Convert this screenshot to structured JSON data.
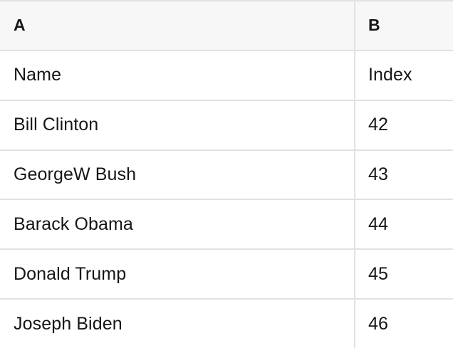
{
  "colors": {
    "header_background": "#f7f7f7",
    "row_background": "#ffffff",
    "border": "#e1e1e1",
    "text": "#161616"
  },
  "table": {
    "headers": [
      "A",
      "B"
    ],
    "rows": [
      [
        "Name",
        "Index"
      ],
      [
        "Bill Clinton",
        "42"
      ],
      [
        "GeorgeW Bush",
        "43"
      ],
      [
        "Barack Obama",
        "44"
      ],
      [
        "Donald Trump",
        "45"
      ],
      [
        "Joseph Biden",
        "46"
      ]
    ]
  }
}
